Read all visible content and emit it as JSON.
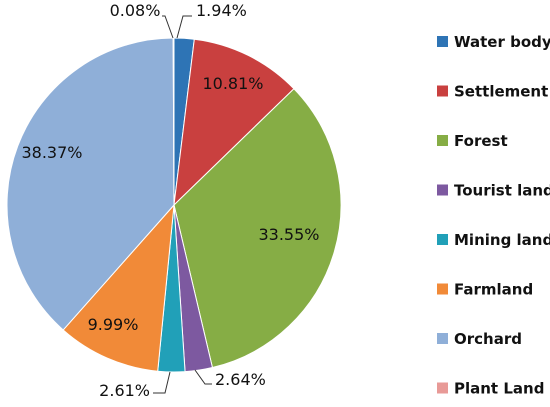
{
  "chart_data": {
    "type": "pie",
    "title": "",
    "start": "top",
    "direction": "clockwise",
    "legend_position": "right",
    "slices": [
      {
        "label": "Water body",
        "value": 1.94,
        "text": "1.94%",
        "color": "#2e74b5"
      },
      {
        "label": "Settlement",
        "value": 10.81,
        "text": "10.81%",
        "color": "#c9403f"
      },
      {
        "label": "Forest",
        "value": 33.55,
        "text": "33.55%",
        "color": "#86ad45"
      },
      {
        "label": "Tourist land",
        "value": 2.64,
        "text": "2.64%",
        "color": "#7d59a0"
      },
      {
        "label": "Mining land",
        "value": 2.61,
        "text": "2.61%",
        "color": "#21a0b8"
      },
      {
        "label": "Farmland",
        "value": 9.99,
        "text": "9.99%",
        "color": "#f18a38"
      },
      {
        "label": "Orchard",
        "value": 38.37,
        "text": "38.37%",
        "color": "#8fafd8"
      },
      {
        "label": "Plant Land",
        "value": 0.08,
        "text": "0.08%",
        "color": "#e89a97"
      }
    ]
  }
}
